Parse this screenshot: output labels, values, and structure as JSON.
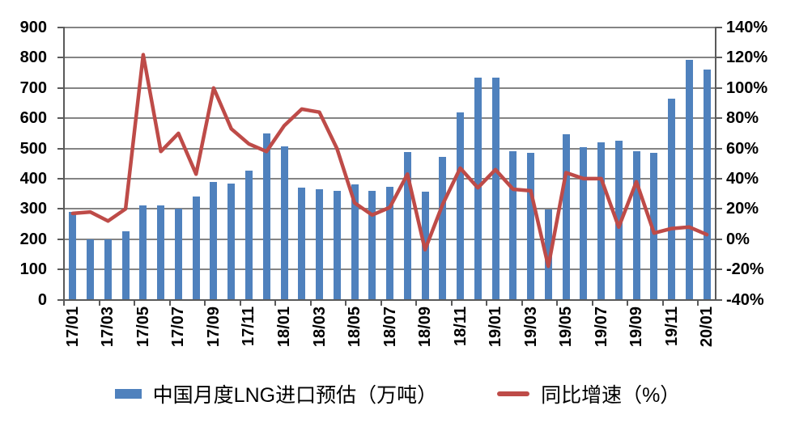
{
  "legend": {
    "bar_label": "中国月度LNG进口预估（万吨）",
    "line_label": "同比增速（%）"
  },
  "colors": {
    "bar": "#4F81BD",
    "line": "#BE4B48",
    "gridline": "#848484",
    "axis": "#5a5a5a",
    "text": "#000000",
    "background": "#FFFFFF"
  },
  "chart_data": {
    "type": "combo-bar-line",
    "grid": true,
    "legend_position": "bottom",
    "categories": [
      "17/01",
      "17/02",
      "17/03",
      "17/04",
      "17/05",
      "17/06",
      "17/07",
      "17/08",
      "17/09",
      "17/10",
      "17/11",
      "17/12",
      "18/01",
      "18/02",
      "18/03",
      "18/04",
      "18/05",
      "18/06",
      "18/07",
      "18/08",
      "18/09",
      "18/10",
      "18/11",
      "18/12",
      "19/01",
      "19/02",
      "19/03",
      "19/04",
      "19/05",
      "19/06",
      "19/07",
      "19/08",
      "19/09",
      "19/10",
      "19/11",
      "19/12",
      "20/01"
    ],
    "x_tick_labels": [
      "17/01",
      "17/03",
      "17/05",
      "17/07",
      "17/09",
      "17/11",
      "18/01",
      "18/03",
      "18/05",
      "18/07",
      "18/09",
      "18/11",
      "19/01",
      "19/03",
      "19/05",
      "19/07",
      "19/09",
      "19/11",
      "20/01"
    ],
    "series": [
      {
        "name": "中国月度LNG进口预估（万吨）",
        "type": "bar",
        "axis": "left",
        "color": "#4F81BD",
        "values": [
          290,
          200,
          200,
          225,
          313,
          313,
          302,
          340,
          388,
          383,
          427,
          551,
          508,
          371,
          366,
          360,
          382,
          359,
          373,
          488,
          356,
          471,
          620,
          735,
          735,
          490,
          486,
          298,
          546,
          505,
          520,
          525,
          490,
          485,
          666,
          793,
          762
        ]
      },
      {
        "name": "同比增速（%）",
        "type": "line",
        "axis": "right",
        "color": "#BE4B48",
        "values": [
          17,
          18,
          12,
          20,
          122,
          58,
          70,
          43,
          100,
          73,
          63,
          58,
          75,
          86,
          84,
          60,
          24,
          16,
          21,
          43,
          -7,
          23,
          47,
          34,
          46,
          33,
          32,
          -18,
          44,
          40,
          40,
          8,
          38,
          4,
          7,
          8,
          3
        ]
      }
    ],
    "left_axis": {
      "min": 0,
      "max": 900,
      "step": 100,
      "ticks": [
        0,
        100,
        200,
        300,
        400,
        500,
        600,
        700,
        800,
        900
      ]
    },
    "right_axis": {
      "min": -40,
      "max": 140,
      "step": 20,
      "format": "percent",
      "ticks": [
        "-40%",
        "-20%",
        "0%",
        "20%",
        "40%",
        "60%",
        "80%",
        "100%",
        "120%",
        "140%"
      ]
    }
  }
}
